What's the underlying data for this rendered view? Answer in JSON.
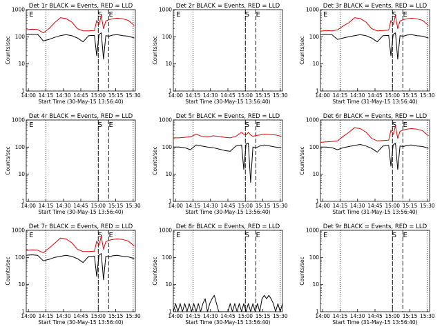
{
  "chart_data": [
    {
      "type": "line",
      "title": "Det 1r BLACK = Events, RED = LLD",
      "xlabel": "Start Time (30-May-15 13:56:40)",
      "ylabel": "Counts/sec",
      "xticks": [
        "14:00",
        "14:15",
        "14:30",
        "14:45",
        "15:00",
        "15:15",
        "15:30"
      ],
      "yticks": [
        "1",
        "10",
        "100",
        "1000"
      ],
      "yscale": "log",
      "ylim": [
        1,
        1000
      ],
      "markers": [
        "E",
        "S",
        "E"
      ],
      "series": [
        {
          "color": "#000000",
          "x": [
            0,
            5,
            10,
            15,
            20,
            25,
            30,
            35,
            40,
            45,
            50,
            55,
            60,
            62,
            64,
            66,
            68,
            70,
            73,
            76,
            80,
            85,
            90,
            95
          ],
          "y": [
            120,
            125,
            125,
            70,
            80,
            95,
            110,
            120,
            110,
            90,
            65,
            110,
            112,
            20,
            120,
            140,
            15,
            110,
            105,
            115,
            120,
            110,
            105,
            90
          ]
        },
        {
          "color": "#e00000",
          "x": [
            0,
            5,
            10,
            15,
            20,
            25,
            30,
            35,
            40,
            45,
            50,
            55,
            60,
            62,
            64,
            66,
            68,
            70,
            73,
            76,
            80,
            85,
            90,
            95
          ],
          "y": [
            180,
            190,
            185,
            140,
            200,
            330,
            500,
            470,
            350,
            200,
            165,
            165,
            170,
            400,
            280,
            600,
            200,
            380,
            430,
            460,
            480,
            460,
            400,
            260
          ]
        }
      ]
    },
    {
      "type": "line",
      "title": "Det 2r BLACK = Events, RED = LLD",
      "xlabel": "Start Time (30-May-15 13:56:40)",
      "ylabel": "Counts/sec",
      "xticks": [
        "14:00",
        "14:15",
        "14:30",
        "14:45",
        "15:00",
        "15:15",
        "15:30"
      ],
      "yticks": [
        "1",
        "10",
        "100",
        "1000"
      ],
      "yscale": "log",
      "ylim": [
        1,
        1000
      ],
      "markers": [
        "E",
        "S",
        "E"
      ],
      "series": []
    },
    {
      "type": "line",
      "title": "Det 3r BLACK = Events, RED = LLD",
      "xlabel": "Start Time (31-May-15 13:56:40)",
      "ylabel": "Counts/sec",
      "xticks": [
        "14:00",
        "14:15",
        "14:30",
        "14:45",
        "15:00",
        "15:15",
        "15:30"
      ],
      "yticks": [
        "1",
        "10",
        "100",
        "1000"
      ],
      "yscale": "log",
      "ylim": [
        1,
        1000
      ],
      "markers": [
        "E",
        "S",
        "E"
      ],
      "series": [
        {
          "color": "#000000",
          "x": [
            0,
            5,
            10,
            15,
            20,
            25,
            30,
            35,
            40,
            45,
            50,
            55,
            60,
            62,
            64,
            66,
            68,
            70,
            73,
            76,
            80,
            85,
            90,
            95
          ],
          "y": [
            120,
            125,
            120,
            80,
            90,
            100,
            110,
            120,
            110,
            90,
            65,
            110,
            112,
            20,
            120,
            140,
            15,
            110,
            105,
            115,
            120,
            110,
            105,
            90
          ]
        },
        {
          "color": "#e00000",
          "x": [
            0,
            5,
            10,
            15,
            20,
            25,
            30,
            35,
            40,
            45,
            50,
            55,
            60,
            62,
            64,
            66,
            68,
            70,
            73,
            76,
            80,
            85,
            90,
            95
          ],
          "y": [
            160,
            170,
            165,
            180,
            250,
            330,
            500,
            470,
            350,
            200,
            165,
            170,
            175,
            400,
            280,
            600,
            200,
            380,
            430,
            460,
            480,
            460,
            400,
            260
          ]
        }
      ]
    },
    {
      "type": "line",
      "title": "Det 4r BLACK = Events, RED = LLD",
      "xlabel": "Start Time (30-May-15 13:56:40)",
      "ylabel": "Counts/sec",
      "xticks": [
        "14:00",
        "14:15",
        "14:30",
        "14:45",
        "15:00",
        "15:15",
        "15:30"
      ],
      "yticks": [
        "1",
        "10",
        "100",
        "1000"
      ],
      "yscale": "log",
      "ylim": [
        1,
        1000
      ],
      "markers": [
        "E",
        "S",
        "E"
      ],
      "series": []
    },
    {
      "type": "line",
      "title": "Det 5r BLACK = Events, RED = LLD",
      "xlabel": "Start Time (30-May-15 13:56:40)",
      "ylabel": "Counts/sec",
      "xticks": [
        "14:00",
        "14:15",
        "14:30",
        "14:45",
        "15:00",
        "15:15",
        "15:30"
      ],
      "yticks": [
        "1",
        "10",
        "100",
        "1000"
      ],
      "yscale": "log",
      "ylim": [
        1,
        1000
      ],
      "markers": [
        "S",
        "E"
      ],
      "series": [
        {
          "color": "#000000",
          "x": [
            0,
            5,
            10,
            15,
            20,
            25,
            30,
            35,
            40,
            45,
            50,
            55,
            60,
            62,
            64,
            66,
            68,
            70,
            73,
            76,
            80,
            85,
            90,
            95
          ],
          "y": [
            100,
            100,
            95,
            80,
            120,
            110,
            100,
            95,
            85,
            75,
            70,
            110,
            120,
            15,
            130,
            140,
            5,
            100,
            95,
            110,
            120,
            110,
            100,
            95
          ]
        },
        {
          "color": "#e00000",
          "x": [
            0,
            5,
            10,
            15,
            20,
            25,
            30,
            35,
            40,
            45,
            50,
            55,
            60,
            62,
            64,
            66,
            68,
            70,
            73,
            76,
            80,
            85,
            90,
            95
          ],
          "y": [
            220,
            220,
            230,
            240,
            300,
            250,
            240,
            260,
            250,
            230,
            220,
            250,
            350,
            300,
            280,
            350,
            280,
            250,
            270,
            280,
            300,
            290,
            280,
            250
          ]
        }
      ]
    },
    {
      "type": "line",
      "title": "Det 6r BLACK = Events, RED = LLD",
      "xlabel": "Start Time (31-May-15 13:56:40)",
      "ylabel": "Counts/sec",
      "xticks": [
        "14:00",
        "14:15",
        "14:30",
        "14:45",
        "15:00",
        "15:15",
        "15:30"
      ],
      "yticks": [
        "1",
        "10",
        "100",
        "1000"
      ],
      "yscale": "log",
      "ylim": [
        1,
        1000
      ],
      "markers": [
        "S",
        "E"
      ],
      "series": [
        {
          "color": "#000000",
          "x": [
            0,
            5,
            10,
            15,
            20,
            25,
            30,
            35,
            40,
            45,
            50,
            55,
            60,
            62,
            64,
            66,
            68,
            70,
            73,
            76,
            80,
            85,
            90,
            95
          ],
          "y": [
            100,
            100,
            95,
            80,
            95,
            105,
            115,
            125,
            110,
            90,
            65,
            110,
            115,
            20,
            120,
            140,
            15,
            110,
            105,
            115,
            120,
            110,
            105,
            90
          ]
        },
        {
          "color": "#e00000",
          "x": [
            0,
            5,
            10,
            15,
            20,
            25,
            30,
            35,
            40,
            45,
            50,
            55,
            60,
            62,
            64,
            66,
            68,
            70,
            73,
            76,
            80,
            85,
            90,
            95
          ],
          "y": [
            150,
            155,
            160,
            170,
            250,
            350,
            520,
            480,
            360,
            210,
            170,
            175,
            180,
            420,
            290,
            620,
            210,
            380,
            430,
            460,
            480,
            460,
            400,
            260
          ]
        }
      ]
    },
    {
      "type": "line",
      "title": "Det 7r BLACK = Events, RED = LLD",
      "xlabel": "Start Time (30-May-15 13:56:40)",
      "ylabel": "Counts/sec",
      "xticks": [
        "14:00",
        "14:15",
        "14:30",
        "14:45",
        "15:00",
        "15:15",
        "15:30"
      ],
      "yticks": [
        "1",
        "10",
        "100",
        "1000"
      ],
      "yscale": "log",
      "ylim": [
        1,
        1000
      ],
      "markers": [
        "E",
        "S",
        "E"
      ],
      "series": [
        {
          "color": "#000000",
          "x": [
            0,
            5,
            10,
            15,
            20,
            25,
            30,
            35,
            40,
            45,
            50,
            55,
            60,
            62,
            64,
            66,
            68,
            70,
            73,
            76,
            80,
            85,
            90,
            95
          ],
          "y": [
            120,
            125,
            120,
            75,
            85,
            100,
            110,
            120,
            110,
            90,
            65,
            110,
            112,
            20,
            120,
            140,
            15,
            110,
            105,
            115,
            120,
            110,
            105,
            90
          ]
        },
        {
          "color": "#e00000",
          "x": [
            0,
            5,
            10,
            15,
            20,
            25,
            30,
            35,
            40,
            45,
            50,
            55,
            60,
            62,
            64,
            66,
            68,
            70,
            73,
            76,
            80,
            85,
            90,
            95
          ],
          "y": [
            180,
            190,
            185,
            150,
            220,
            330,
            520,
            480,
            350,
            200,
            165,
            165,
            170,
            400,
            280,
            600,
            200,
            380,
            430,
            460,
            480,
            460,
            400,
            260
          ]
        }
      ]
    },
    {
      "type": "line",
      "title": "Det 8r BLACK = Events, RED = LLD",
      "xlabel": "Start Time (30-May-15 13:56:40)",
      "ylabel": "Counts/sec",
      "xticks": [
        "14:00",
        "14:15",
        "14:30",
        "14:45",
        "15:00",
        "15:15",
        "15:30"
      ],
      "yticks": [
        "1",
        "10",
        "100",
        "1000"
      ],
      "yscale": "log",
      "ylim": [
        1,
        1000
      ],
      "markers": [
        "E",
        "S",
        "E"
      ],
      "series": [
        {
          "color": "#000000",
          "x": [
            0,
            2,
            4,
            6,
            8,
            10,
            12,
            14,
            16,
            18,
            20,
            22,
            24,
            26,
            28,
            30,
            32,
            34,
            36,
            38,
            40,
            42,
            44,
            46,
            48,
            50,
            52,
            54,
            56,
            58,
            60,
            62,
            64,
            66,
            68,
            70,
            72,
            74,
            76,
            78,
            80,
            82,
            84,
            86,
            88,
            90,
            92,
            94,
            96
          ],
          "y": [
            1,
            2,
            1,
            2,
            1,
            2,
            1,
            2,
            1,
            2,
            1,
            2,
            1,
            2,
            3,
            1,
            2,
            3,
            4,
            2,
            1,
            1,
            1,
            1,
            1,
            2,
            1,
            2,
            1,
            2,
            1,
            2,
            1,
            2,
            1,
            2,
            1,
            2,
            1,
            3,
            4,
            3,
            4,
            3,
            2,
            1,
            2,
            1,
            2
          ]
        }
      ]
    },
    {
      "type": "line",
      "title": "Det 9r BLACK = Events, RED = LLD",
      "xlabel": "Start Time (31-May-15 13:56:40)",
      "ylabel": "Counts/sec",
      "xticks": [
        "14:00",
        "14:15",
        "14:30",
        "14:45",
        "15:00",
        "15:15",
        "15:30"
      ],
      "yticks": [
        "1",
        "10",
        "100",
        "1000"
      ],
      "yscale": "log",
      "ylim": [
        1,
        1000
      ],
      "markers": [
        "E",
        "S",
        "E"
      ],
      "series": []
    }
  ]
}
